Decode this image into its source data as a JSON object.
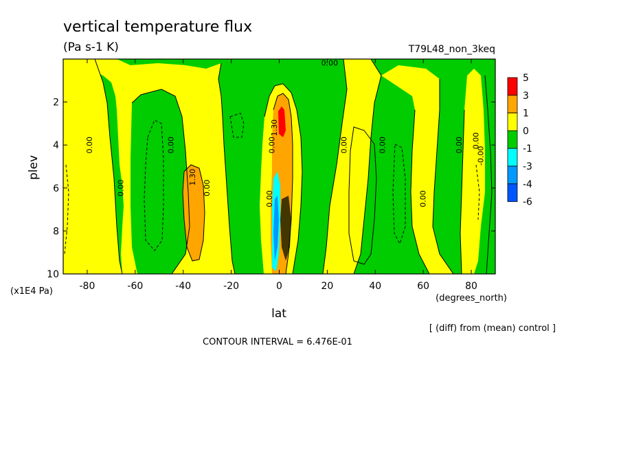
{
  "chart_data": {
    "type": "heatmap",
    "title": "vertical temperature flux",
    "subtitle": "(Pa s-1 K)",
    "run_label": "T79L48_non_3keq",
    "xlabel": "lat",
    "xunits": "(degrees_north)",
    "ylabel": "plev",
    "yunits": "(x1E4 Pa)",
    "xlim": [
      -90,
      90
    ],
    "ylim": [
      10,
      0
    ],
    "x_ticks": [
      -80,
      -60,
      -40,
      -20,
      0,
      20,
      40,
      60,
      80
    ],
    "x_tick_labels": [
      "-80",
      "-60",
      "-40",
      "-20",
      "0",
      "20",
      "40",
      "60",
      "80"
    ],
    "y_ticks": [
      2,
      4,
      6,
      8,
      10
    ],
    "y_tick_labels": [
      "2",
      "4",
      "6",
      "8",
      "10"
    ],
    "diff_note": "[ (diff) from (mean) control ]",
    "contour_interval": "CONTOUR INTERVAL = 6.476E-01",
    "colorbar": {
      "labels": [
        "5",
        "3",
        "1",
        "0",
        "-1",
        "-3",
        "-4",
        "-6"
      ],
      "colors": [
        "#ff0000",
        "#ffa500",
        "#ffff00",
        "#00cc00",
        "#00ffff",
        "#0099ff",
        "#0055ff"
      ]
    },
    "contour_labels": [
      {
        "text": "0.00",
        "lat": -78,
        "plev": 4.0
      },
      {
        "text": "0.00",
        "lat": -65,
        "plev": 6.0
      },
      {
        "text": "0.00",
        "lat": -44,
        "plev": 4.0
      },
      {
        "text": "1.30",
        "lat": -35,
        "plev": 5.5
      },
      {
        "text": "0.00",
        "lat": -29,
        "plev": 6.0
      },
      {
        "text": "1.30",
        "lat": -1,
        "plev": 3.2
      },
      {
        "text": "0.00",
        "lat": -2,
        "plev": 4.0
      },
      {
        "text": "0.00",
        "lat": -3,
        "plev": 6.5
      },
      {
        "text": "0.00",
        "lat": 28,
        "plev": 4.0
      },
      {
        "text": "0.00",
        "lat": 44,
        "plev": 4.0
      },
      {
        "text": "0.00",
        "lat": 61,
        "plev": 6.5
      },
      {
        "text": "0.00",
        "lat": 76,
        "plev": 4.0
      },
      {
        "text": "0.00",
        "lat": 83,
        "plev": 3.8
      },
      {
        "text": "-0.00",
        "lat": 85,
        "plev": 4.5
      },
      {
        "text": "0.00",
        "lat": 21,
        "plev": 0.3
      }
    ]
  }
}
